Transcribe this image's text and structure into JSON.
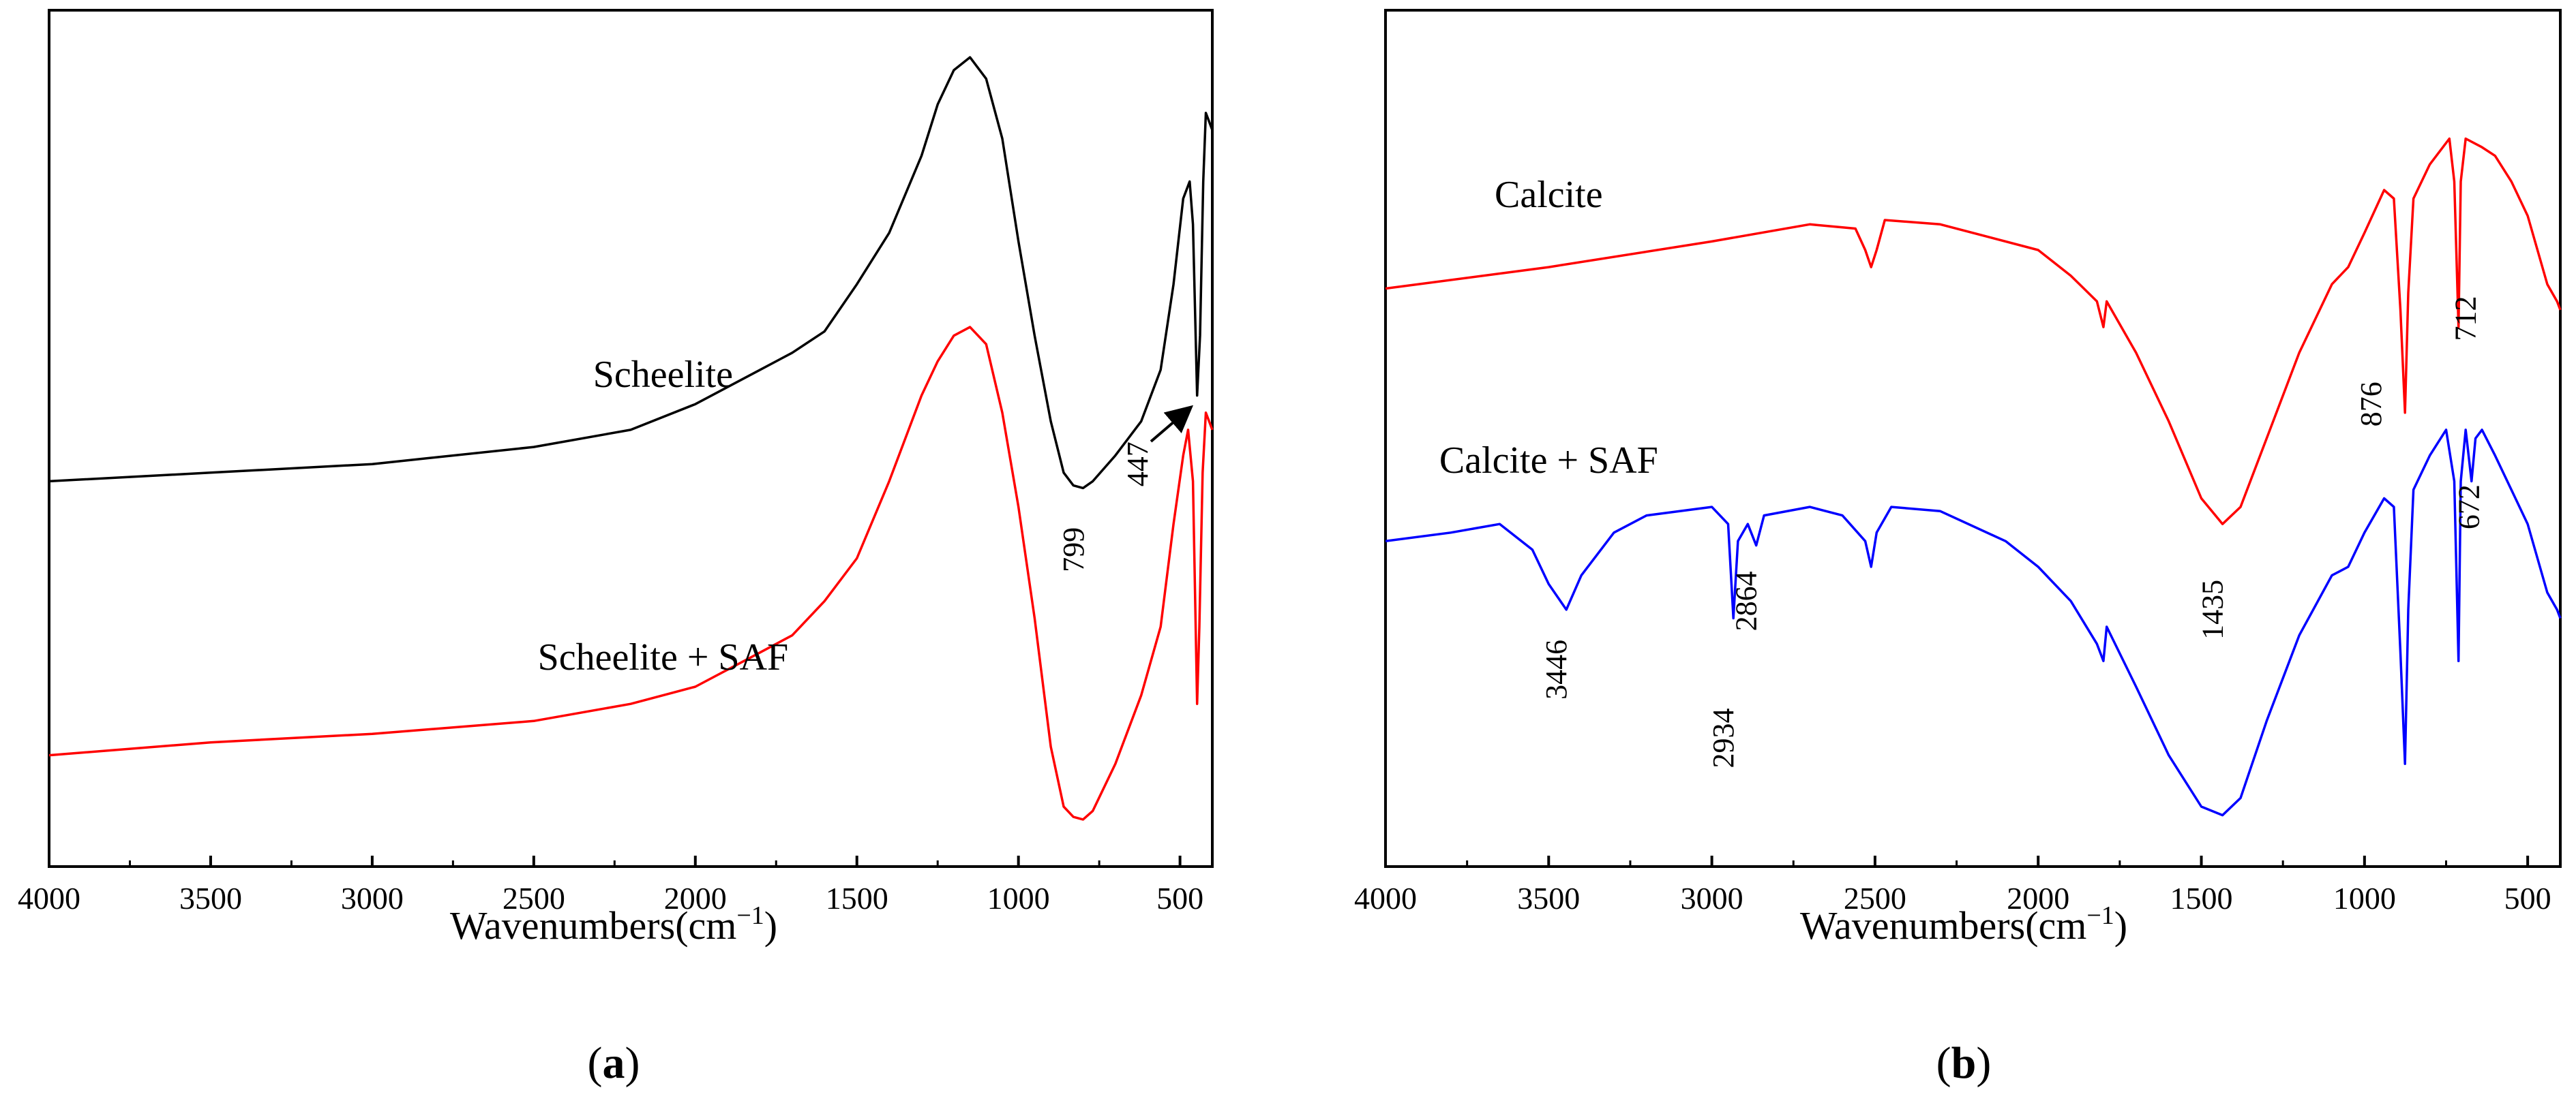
{
  "chart_data": [
    {
      "type": "line",
      "panel_label": "a",
      "xlabel_prefix": "Wavenumbers(cm",
      "xlabel_sup": "−1",
      "xlabel_suffix": ")",
      "xlim": [
        4000,
        400
      ],
      "ylim": [
        0,
        100
      ],
      "xticks": [
        4000,
        3500,
        3000,
        2500,
        2000,
        1500,
        1000,
        500
      ],
      "y_ticks_shown": false,
      "series": [
        {
          "name": "Scheelite",
          "color": "#000000",
          "points": [
            [
              4000,
              45
            ],
            [
              3500,
              46
            ],
            [
              3000,
              47
            ],
            [
              2500,
              49
            ],
            [
              2200,
              51
            ],
            [
              2000,
              54
            ],
            [
              1800,
              58
            ],
            [
              1700,
              60
            ],
            [
              1600,
              62.5
            ],
            [
              1500,
              68
            ],
            [
              1400,
              74
            ],
            [
              1300,
              83
            ],
            [
              1250,
              89
            ],
            [
              1200,
              93
            ],
            [
              1150,
              94.5
            ],
            [
              1100,
              92
            ],
            [
              1050,
              85
            ],
            [
              1000,
              73
            ],
            [
              950,
              62
            ],
            [
              900,
              52
            ],
            [
              860,
              46
            ],
            [
              830,
              44.5
            ],
            [
              800,
              44.2
            ],
            [
              770,
              45
            ],
            [
              700,
              48
            ],
            [
              620,
              52
            ],
            [
              560,
              58
            ],
            [
              520,
              68
            ],
            [
              490,
              78
            ],
            [
              470,
              80
            ],
            [
              460,
              75
            ],
            [
              447,
              55
            ],
            [
              438,
              62
            ],
            [
              428,
              80
            ],
            [
              420,
              88
            ],
            [
              410,
              87
            ],
            [
              400,
              86
            ]
          ]
        },
        {
          "name": "Scheelite + SAF",
          "color": "#ff0000",
          "points": [
            [
              4000,
              13
            ],
            [
              3500,
              14.5
            ],
            [
              3000,
              15.5
            ],
            [
              2500,
              17
            ],
            [
              2200,
              19
            ],
            [
              2000,
              21
            ],
            [
              1800,
              25
            ],
            [
              1700,
              27
            ],
            [
              1600,
              31
            ],
            [
              1500,
              36
            ],
            [
              1400,
              45
            ],
            [
              1300,
              55
            ],
            [
              1250,
              59
            ],
            [
              1200,
              62
            ],
            [
              1150,
              63
            ],
            [
              1100,
              61
            ],
            [
              1050,
              53
            ],
            [
              1000,
              42
            ],
            [
              950,
              29
            ],
            [
              900,
              14
            ],
            [
              860,
              7
            ],
            [
              830,
              5.8
            ],
            [
              800,
              5.5
            ],
            [
              770,
              6.5
            ],
            [
              700,
              12
            ],
            [
              620,
              20
            ],
            [
              560,
              28
            ],
            [
              520,
              40
            ],
            [
              490,
              48
            ],
            [
              475,
              51
            ],
            [
              460,
              45
            ],
            [
              447,
              19
            ],
            [
              440,
              28
            ],
            [
              430,
              46
            ],
            [
              420,
              53
            ],
            [
              410,
              52
            ],
            [
              400,
              51
            ]
          ]
        }
      ],
      "labels": [
        {
          "text": "Scheelite",
          "x": 2100,
          "y": 56
        },
        {
          "text": "Scheelite + SAF",
          "x": 2100,
          "y": 23
        },
        {
          "text": "799",
          "x": 799,
          "y": 37
        },
        {
          "text": "447",
          "x": 600,
          "y": 47
        }
      ]
    },
    {
      "type": "line",
      "panel_label": "b",
      "xlabel_prefix": "Wavenumbers(cm",
      "xlabel_sup": "−1",
      "xlabel_suffix": ")",
      "xlim": [
        4000,
        400
      ],
      "ylim": [
        0,
        100
      ],
      "xticks": [
        4000,
        3500,
        3000,
        2500,
        2000,
        1500,
        1000,
        500
      ],
      "y_ticks_shown": false,
      "series": [
        {
          "name": "Calcite",
          "color": "#ff0000",
          "points": [
            [
              4000,
              67.5
            ],
            [
              3500,
              70
            ],
            [
              3000,
              73
            ],
            [
              2700,
              75
            ],
            [
              2560,
              74.5
            ],
            [
              2530,
              72
            ],
            [
              2512,
              70
            ],
            [
              2495,
              72
            ],
            [
              2470,
              75.5
            ],
            [
              2300,
              75
            ],
            [
              2000,
              72
            ],
            [
              1900,
              69
            ],
            [
              1820,
              66
            ],
            [
              1800,
              63
            ],
            [
              1790,
              66
            ],
            [
              1700,
              60
            ],
            [
              1600,
              52
            ],
            [
              1500,
              43
            ],
            [
              1435,
              40
            ],
            [
              1380,
              42
            ],
            [
              1300,
              50
            ],
            [
              1200,
              60
            ],
            [
              1100,
              68
            ],
            [
              1050,
              70
            ],
            [
              1000,
              74
            ],
            [
              940,
              79
            ],
            [
              910,
              78
            ],
            [
              890,
              65
            ],
            [
              876,
              53
            ],
            [
              866,
              67
            ],
            [
              850,
              78
            ],
            [
              800,
              82
            ],
            [
              740,
              85
            ],
            [
              725,
              80
            ],
            [
              712,
              63
            ],
            [
              705,
              80
            ],
            [
              690,
              85
            ],
            [
              640,
              84
            ],
            [
              600,
              83
            ],
            [
              550,
              80
            ],
            [
              500,
              76
            ],
            [
              440,
              68
            ],
            [
              410,
              66
            ],
            [
              400,
              65
            ]
          ]
        },
        {
          "name": "Calcite + SAF",
          "color": "#0000ff",
          "points": [
            [
              4000,
              38
            ],
            [
              3800,
              39
            ],
            [
              3650,
              40
            ],
            [
              3550,
              37
            ],
            [
              3500,
              33
            ],
            [
              3446,
              30
            ],
            [
              3400,
              34
            ],
            [
              3300,
              39
            ],
            [
              3200,
              41
            ],
            [
              3000,
              42
            ],
            [
              2950,
              40
            ],
            [
              2934,
              29
            ],
            [
              2920,
              38
            ],
            [
              2890,
              40
            ],
            [
              2864,
              37.5
            ],
            [
              2840,
              41
            ],
            [
              2700,
              42
            ],
            [
              2600,
              41
            ],
            [
              2530,
              38
            ],
            [
              2512,
              35
            ],
            [
              2495,
              39
            ],
            [
              2450,
              42
            ],
            [
              2300,
              41.5
            ],
            [
              2100,
              38
            ],
            [
              2000,
              35
            ],
            [
              1900,
              31
            ],
            [
              1820,
              26
            ],
            [
              1800,
              24
            ],
            [
              1790,
              28
            ],
            [
              1700,
              21
            ],
            [
              1600,
              13
            ],
            [
              1500,
              7
            ],
            [
              1435,
              6
            ],
            [
              1380,
              8
            ],
            [
              1300,
              17
            ],
            [
              1200,
              27
            ],
            [
              1100,
              34
            ],
            [
              1050,
              35
            ],
            [
              1000,
              39
            ],
            [
              940,
              43
            ],
            [
              910,
              42
            ],
            [
              890,
              25
            ],
            [
              876,
              12
            ],
            [
              866,
              30
            ],
            [
              850,
              44
            ],
            [
              800,
              48
            ],
            [
              750,
              51
            ],
            [
              725,
              45
            ],
            [
              712,
              24
            ],
            [
              705,
              45
            ],
            [
              690,
              51
            ],
            [
              672,
              45
            ],
            [
              660,
              50
            ],
            [
              640,
              51
            ],
            [
              600,
              48
            ],
            [
              550,
              44
            ],
            [
              500,
              40
            ],
            [
              440,
              32
            ],
            [
              410,
              30
            ],
            [
              400,
              29
            ]
          ]
        }
      ],
      "labels": [
        {
          "text": "Calcite",
          "x": 3500,
          "y": 77
        },
        {
          "text": "Calcite + SAF",
          "x": 3500,
          "y": 46
        },
        {
          "text": "1435",
          "x": 1435,
          "y": 30
        },
        {
          "text": "876",
          "x": 950,
          "y": 54
        },
        {
          "text": "712",
          "x": 660,
          "y": 64
        },
        {
          "text": "672",
          "x": 650,
          "y": 42
        },
        {
          "text": "3446",
          "x": 3446,
          "y": 23
        },
        {
          "text": "2934",
          "x": 2934,
          "y": 15
        },
        {
          "text": "2864",
          "x": 2864,
          "y": 31
        }
      ]
    }
  ]
}
